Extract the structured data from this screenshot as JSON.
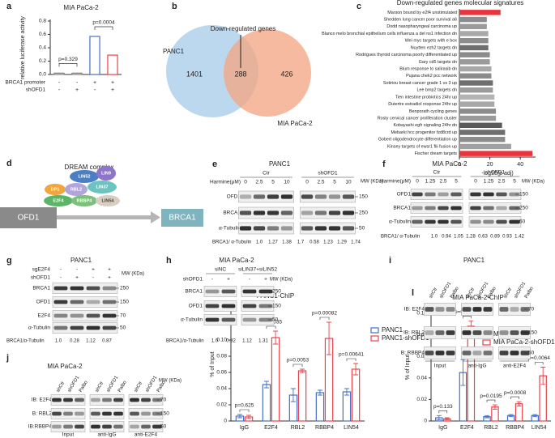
{
  "chart_data": [
    {
      "panel": "a",
      "type": "bar",
      "title": "MIA PaCa-2",
      "ylabel": "relative luciferase activity",
      "values": [
        0.02,
        0.02,
        0.57,
        0.29
      ],
      "colors": [
        "#7f7f7f",
        "#7f7f7f",
        "#4472c4",
        "#e8434a"
      ],
      "ylim": [
        0,
        0.8
      ],
      "yticks": [
        {
          "value": 0,
          "label": "0.0"
        },
        0.2,
        0.4,
        0.6,
        0.8
      ],
      "annotations": [
        "p=0.329",
        "p=0.0004"
      ],
      "rows": [
        {
          "label": "BRCA1 promoter",
          "signs": [
            "-",
            "-",
            "+",
            "+"
          ]
        },
        {
          "label": "shOFD1",
          "signs": [
            "-",
            "+",
            "-",
            "+"
          ]
        }
      ]
    },
    {
      "panel": "c",
      "type": "barh",
      "title": "Down-regulated genes molecular signatures",
      "xlabel": "-log10(p adj)",
      "categories": [
        "Marson bound by e2f4 unstimulated",
        "Shedden lung cancer poor survival a6",
        "Dodd nasopharyngeal carcinoma up",
        "Blanco melo bronchial epithelium cells influenza a del ns1 infection dn",
        "Wei myc targets with e box",
        "Nuytten ezh2 targets dn",
        "Rodrigues thyroid carcinoma poorly differentiated up",
        "Gary cd5 targets dn",
        "Blum response to salirasib dn",
        "Pujana chek2 pcc network",
        "Sotiriou breast cancer grade 1 vs 3 up",
        "Lee bmp2 targets dn",
        "Tien intestine probiotics 24hr up",
        "Dutertre estradiol response 24hr up",
        "Benporath cycling genes",
        "Rosty cervical cancer proliferation cluster",
        "Kobayashi egfr signaling 24hr dn",
        "Mebarki hcc progenitor fzd8crd up",
        "Gobert oligodendrocyte differentiation up",
        "Kinsey targets of ewsr1 flii fusion up",
        "Fischer dream targets"
      ],
      "values": [
        27,
        18,
        18,
        19,
        19,
        19,
        20,
        20,
        21,
        21,
        22,
        22,
        23,
        23,
        24,
        24,
        28,
        30,
        30,
        34,
        48
      ],
      "colors": [
        "#e8343a",
        "#8c8c8c",
        "#9a9a9a",
        "#a8a8a8",
        "#8c8c8c",
        "#6e6e6e",
        "#8c8c8c",
        "#9a9a9a",
        "#a8a8a8",
        "#8c8c8c",
        "#6e6e6e",
        "#9a9a9a",
        "#b4b4b4",
        "#a8a8a8",
        "#8c8c8c",
        "#9a9a9a",
        "#5a5a5a",
        "#6e6e6e",
        "#8c8c8c",
        "#a0a0a0",
        "#e8343a"
      ],
      "xlim": [
        0,
        50
      ],
      "xticks": [
        0,
        20,
        40
      ]
    },
    {
      "panel": "k",
      "type": "bar",
      "title": "PANC1-ChIP",
      "ylabel": "% of Input",
      "categories": [
        "IgG",
        "E2F4",
        "RBL2",
        "RBBP4",
        "LIN54"
      ],
      "series": [
        {
          "name": "PANC1",
          "color": "#4472c4",
          "values": [
            0.006,
            0.045,
            0.032,
            0.035,
            0.036
          ],
          "errors": [
            0.002,
            0.004,
            0.008,
            0.003,
            0.004
          ]
        },
        {
          "name": "PANC1-shOFD1",
          "color": "#e8434a",
          "values": [
            0.005,
            0.103,
            0.062,
            0.102,
            0.064
          ],
          "errors": [
            0.002,
            0.008,
            0.002,
            0.02,
            0.007
          ]
        }
      ],
      "ylim": [
        0,
        0.14
      ],
      "yticks": [
        0,
        0.02,
        0.04,
        0.06,
        0.08,
        {
          "value": 0.1,
          "label": "0.10"
        },
        0.12,
        0.14
      ],
      "pvalues": [
        "p=0.625",
        "p=0.0035",
        "p=0.0053",
        "p=0.00082",
        "p=0.00641"
      ],
      "legend": "top-right"
    },
    {
      "panel": "l",
      "type": "bar",
      "title": "MIA PaCa-2-ChIP",
      "ylabel": "% of Input",
      "categories": [
        "IgG",
        "E2F4",
        "RBL2",
        "RBBP4",
        "LIN54"
      ],
      "series": [
        {
          "name": "MIA PaCa-2",
          "color": "#4472c4",
          "values": [
            0.003,
            0.045,
            0.004,
            0.005,
            0.005
          ],
          "errors": [
            0.002,
            0.012,
            0.001,
            0.001,
            0.001
          ]
        },
        {
          "name": "MIA PaCa-2-shOFD1",
          "color": "#e8434a",
          "values": [
            0.002,
            0.088,
            0.013,
            0.016,
            0.042
          ],
          "errors": [
            0.001,
            0.005,
            0.002,
            0.002,
            0.008
          ]
        }
      ],
      "ylim": [
        0,
        0.1
      ],
      "yticks": [
        0,
        0.02,
        0.04,
        0.06,
        0.08,
        {
          "value": 0.1,
          "label": "0.10"
        }
      ],
      "pvalues": [
        "p=0.133",
        "p=0.00104",
        "p=0.0195",
        "p=0.0008",
        "p=0.0064"
      ],
      "legend": "top-right"
    }
  ],
  "venn": {
    "label": "b",
    "left": "PANC1",
    "right": "MIA PaCa-2",
    "left_only": 1401,
    "both": 288,
    "right_only": 426,
    "callout": "Down-regulated genes"
  },
  "dream": {
    "label": "d",
    "title": "DREAM complex",
    "proteins": [
      "LIN52",
      "LIN9",
      "DP1",
      "RBL2",
      "LIN37",
      "E2F4",
      "RBBP4",
      "LIN54"
    ],
    "source": "OFD1",
    "target": "BRCA1"
  },
  "blots": [
    {
      "label": "e",
      "title": "PANC1",
      "groups": [
        "Ctr",
        "shOFD1"
      ],
      "lane_rows": [
        {
          "label": "Harmine(μM)",
          "lanes": [
            "0",
            "2.5",
            "5",
            "10",
            "0",
            "2.5",
            "5",
            "10"
          ]
        }
      ],
      "mw_label": "MW (KDa)",
      "rows": [
        {
          "label": "OFD1",
          "mw": 150
        },
        {
          "label": "BRCA1",
          "mw": 250
        },
        {
          "label": "α-Tubulin",
          "mw": 50
        }
      ],
      "quant": {
        "label": "BRCA1/ α-Tubulin",
        "values": [
          "1.0",
          "1.27",
          "1.38",
          "1.7",
          "0.58",
          "1.23",
          "1.29",
          "1.74"
        ]
      }
    },
    {
      "label": "f",
      "title": "MIA PaCa-2",
      "groups": [
        "Ctr",
        "shOFD1"
      ],
      "lane_rows": [
        {
          "label": "Harmine(μM)",
          "lanes": [
            "0",
            "1.25",
            "2.5",
            "5",
            "0",
            "1.25",
            "2.5",
            "5"
          ]
        }
      ],
      "mw_label": "MW (KDa)",
      "rows": [
        {
          "label": "OFD1",
          "mw": 150
        },
        {
          "label": "BRCA1",
          "mw": 250
        },
        {
          "label": "α-Tubulin",
          "mw": 50
        }
      ],
      "quant": {
        "label": "BRCA1/ α-Tubulin",
        "values": [
          "1.0",
          "0.94",
          "1.05",
          "1.28",
          "0.63",
          "0.89",
          "0.93",
          "1.42"
        ]
      }
    },
    {
      "label": "g",
      "title": "PANC1",
      "lane_rows": [
        {
          "label": "sgE2F4",
          "lanes": [
            "-",
            "-",
            "+",
            "+"
          ]
        },
        {
          "label": "shOFD1",
          "lanes": [
            "-",
            "+",
            "-",
            "+"
          ]
        }
      ],
      "mw_label": "MW (KDa)",
      "rows": [
        {
          "label": "BRCA1",
          "mw": 250
        },
        {
          "label": "OFD1",
          "mw": 150
        },
        {
          "label": "E2F4",
          "mw": 70
        },
        {
          "label": "α-Tubulin",
          "mw": 50
        }
      ],
      "quant": {
        "label": "BRCA1/α-Tubulin",
        "values": [
          "1.0",
          "0.28",
          "1.12",
          "0.87"
        ]
      }
    },
    {
      "label": "h",
      "title": "MIA PaCa-2",
      "groups": [
        "siNC",
        "siLIN37+siLIN52"
      ],
      "lane_rows": [
        {
          "label": "shOFD1",
          "lanes": [
            "-",
            "+",
            "-",
            "+"
          ]
        }
      ],
      "mw_label": "MW (KDa)",
      "rows": [
        {
          "label": "BRCA1",
          "mw": 250
        },
        {
          "label": "OFD1",
          "mw": 150
        },
        {
          "label": "α-Tubulin",
          "mw": 50
        }
      ],
      "quant": {
        "label": "BRCA1/α-Tubulin",
        "values": [
          "1.0",
          "0.32",
          "1.12",
          "1.31"
        ]
      }
    },
    {
      "label": "i",
      "title": "PANC1",
      "lanes": [
        "shCtr",
        "shOFD1",
        "Palbo",
        "shCtr",
        "shOFD1",
        "Palbo",
        "shCtr",
        "shOFD1",
        "Palbo"
      ],
      "groups": [
        "Input",
        "anti-IgG",
        "anti-E2F4"
      ],
      "rows": [
        {
          "label": "IB: E2F4",
          "mw": 70
        },
        {
          "label": "IB: RBL2",
          "mw": 150
        },
        {
          "label": "B: RBBP4",
          "mw": 50
        }
      ]
    },
    {
      "label": "j",
      "title": "MIA PaCa-2",
      "lanes": [
        "shCtr",
        "shOFD1",
        "Palbo",
        "shCtr",
        "shOFD1",
        "Palbo",
        "shCtr",
        "shOFD1",
        "Palbo"
      ],
      "groups": [
        "Input",
        "anti-IgG",
        "anti-E2F4"
      ],
      "mw_label": "MW (KDa)",
      "rows": [
        {
          "label": "IB: E2F4",
          "mw": 70
        },
        {
          "label": "B: RBL2",
          "mw": 150
        },
        {
          "label": "IB:RBBP4",
          "mw": 50
        }
      ]
    }
  ]
}
